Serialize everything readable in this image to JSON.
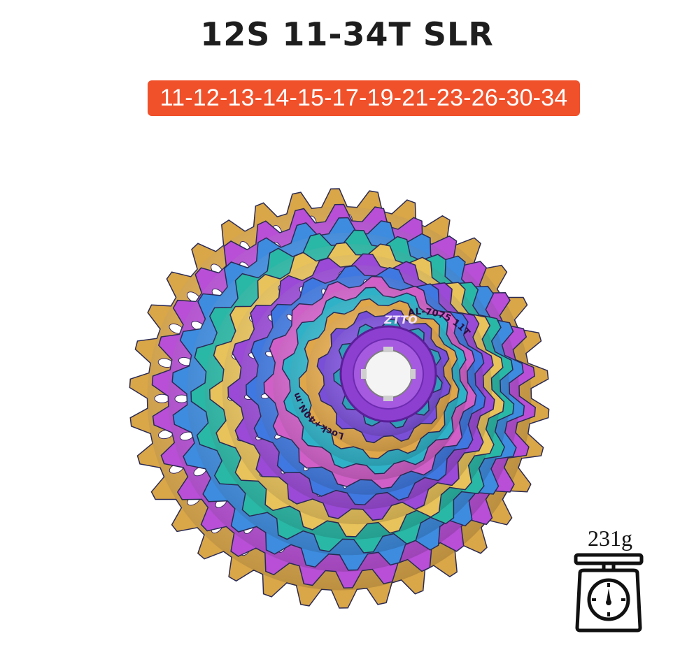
{
  "title": "12S 11-34T SLR",
  "ratio": "11-12-13-14-15-17-19-21-23-26-30-34",
  "lockring": {
    "brand": "ZTTO",
    "left_text": "Lock+40N.m",
    "right_text": "AL-7075 11T"
  },
  "weight": "231g",
  "icons": {
    "scale": "kitchen-scale-icon"
  },
  "colors": {
    "badge": "#f0502a",
    "lockring": "#8d3fd0",
    "title": "#1e1e1e"
  }
}
